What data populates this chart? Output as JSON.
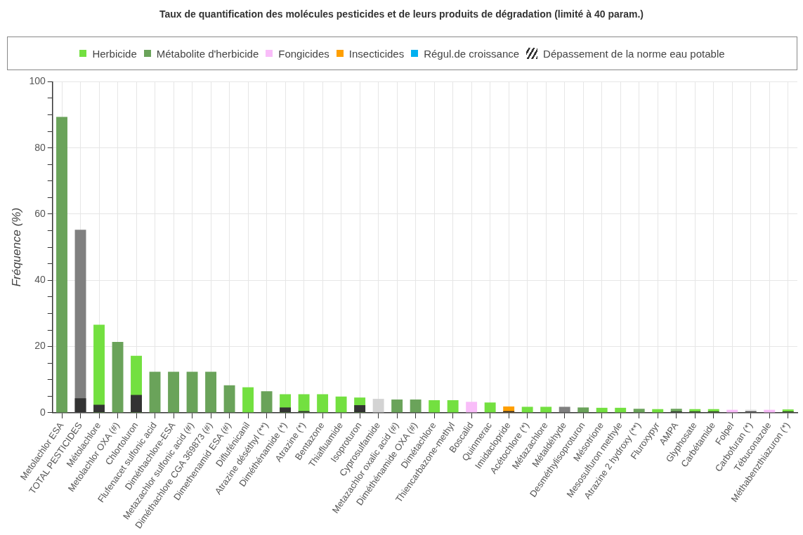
{
  "chart_data": {
    "type": "bar",
    "title": "Taux de quantification des molécules pesticides et de leurs produits de dégradation (limité à 40 param.)",
    "ylabel": "Fréquence (%)",
    "categories": [
      "Metolachlor ESA",
      "TOTAL PESTICIDES",
      "Métolachlore",
      "Metolachlor OXA (#)",
      "Chlortoluron",
      "Flufenacet sulfonic acid",
      "Diméthachlore-ESA",
      "Metazachlor sulfonic acid (#)",
      "Diméthachlore CGA 369873 (#)",
      "Dimethenamid ESA (#)",
      "Diflufénicanil",
      "Atrazine déséthyl (**)",
      "Diméthénamide (*)",
      "Atrazine (*)",
      "Bentazone",
      "Thiafluamide",
      "Isoproturon",
      "Cyprosulfamide",
      "Metazachlor oxalic acid (#)",
      "Diméthénamide OXA (#)",
      "Dimétachlore",
      "Thiencarbazone-methyl",
      "Boscalid",
      "Quinmerac",
      "Imidaclopride",
      "Acétochlore (*)",
      "Métazachlore",
      "Métaldéhyde",
      "Desméthylisoproturon",
      "Mésotrione",
      "Mesosulfuron methyle",
      "Atrazine 2 hydroxy (**)",
      "Fluroxypyr",
      "AMPA",
      "Glyphosate",
      "Carbétamide",
      "Folpel",
      "Carbofuran (*)",
      "Tébuconazole",
      "Méthabenzthiazuron (*)"
    ],
    "series": [
      {
        "name": "Herbicide",
        "color": "#73e040",
        "values": [
          null,
          null,
          26.6,
          null,
          17.2,
          null,
          null,
          null,
          null,
          null,
          7.7,
          null,
          5.6,
          5.6,
          5.6,
          4.9,
          4.6,
          null,
          null,
          null,
          3.8,
          3.8,
          null,
          3.1,
          null,
          1.8,
          1.8,
          null,
          null,
          1.5,
          1.5,
          null,
          1.1,
          null,
          1.1,
          1.1,
          null,
          null,
          null,
          1.0
        ]
      },
      {
        "name": "Métabolite d'herbicide",
        "color": "#6aa35a",
        "values": [
          89.4,
          null,
          null,
          21.4,
          null,
          12.4,
          12.4,
          12.4,
          12.4,
          8.3,
          null,
          6.5,
          null,
          null,
          null,
          null,
          null,
          null,
          4.0,
          4.0,
          null,
          null,
          null,
          null,
          null,
          null,
          null,
          null,
          1.6,
          null,
          null,
          1.2,
          null,
          1.2,
          null,
          null,
          null,
          null,
          null,
          null
        ]
      },
      {
        "name": "Fongicides",
        "color": "#f9bdf9",
        "values": [
          null,
          null,
          null,
          null,
          null,
          null,
          null,
          null,
          null,
          null,
          null,
          null,
          null,
          null,
          null,
          null,
          null,
          null,
          null,
          null,
          null,
          null,
          3.3,
          null,
          null,
          null,
          null,
          null,
          null,
          null,
          null,
          null,
          null,
          null,
          null,
          null,
          0.9,
          null,
          0.9,
          null
        ]
      },
      {
        "name": "Insecticides",
        "color": "#ff9f00",
        "values": [
          null,
          null,
          null,
          null,
          null,
          null,
          null,
          null,
          null,
          null,
          null,
          null,
          null,
          null,
          null,
          null,
          null,
          null,
          null,
          null,
          null,
          null,
          null,
          null,
          1.9,
          null,
          null,
          null,
          null,
          null,
          null,
          null,
          null,
          null,
          null,
          null,
          null,
          null,
          null,
          null
        ]
      },
      {
        "name": "Régul.de croissance",
        "color": "#00b0f0",
        "values": [
          null,
          null,
          null,
          null,
          null,
          null,
          null,
          null,
          null,
          null,
          null,
          null,
          null,
          null,
          null,
          null,
          null,
          null,
          null,
          null,
          null,
          null,
          null,
          null,
          null,
          null,
          null,
          null,
          null,
          null,
          null,
          null,
          null,
          null,
          null,
          null,
          null,
          null,
          null,
          null
        ]
      },
      {
        "color": "#808080",
        "values": [
          null,
          55.3,
          null,
          null,
          null,
          null,
          null,
          null,
          null,
          null,
          null,
          null,
          null,
          null,
          null,
          null,
          null,
          null,
          null,
          null,
          null,
          null,
          null,
          null,
          null,
          null,
          null,
          1.8,
          null,
          null,
          null,
          null,
          null,
          null,
          null,
          null,
          null,
          null,
          null,
          null
        ]
      },
      {
        "color": "#d3d3d3",
        "values": [
          null,
          null,
          null,
          null,
          null,
          null,
          null,
          null,
          null,
          null,
          null,
          null,
          null,
          null,
          null,
          null,
          null,
          4.2,
          null,
          null,
          null,
          null,
          null,
          null,
          null,
          null,
          null,
          null,
          null,
          null,
          null,
          null,
          null,
          null,
          null,
          null,
          null,
          0.9,
          null,
          null
        ]
      },
      {
        "name": "Dépassement de la norme eau potable",
        "color": "#333333",
        "values": [
          null,
          4.4,
          2.4,
          null,
          5.4,
          null,
          null,
          null,
          null,
          null,
          null,
          null,
          1.6,
          0.5,
          null,
          null,
          2.3,
          null,
          null,
          null,
          null,
          null,
          null,
          null,
          0.5,
          null,
          null,
          null,
          null,
          null,
          null,
          null,
          null,
          0.4,
          0.4,
          0.4,
          null,
          0.4,
          null,
          0.4
        ]
      }
    ],
    "ylim": [
      0,
      100
    ],
    "yticks": [
      0,
      {
        "value": 5,
        "label": null
      },
      {
        "value": 10,
        "label": null
      },
      {
        "value": 15,
        "label": null
      },
      20,
      {
        "value": 25,
        "label": null
      },
      {
        "value": 30,
        "label": null
      },
      {
        "value": 35,
        "label": null
      },
      40,
      {
        "value": 45,
        "label": null
      },
      {
        "value": 50,
        "label": null
      },
      {
        "value": 55,
        "label": null
      },
      60,
      {
        "value": 65,
        "label": null
      },
      {
        "value": 70,
        "label": null
      },
      {
        "value": 75,
        "label": null
      },
      80,
      {
        "value": 85,
        "label": null
      },
      {
        "value": 90,
        "label": null
      },
      {
        "value": 95,
        "label": null
      },
      100
    ],
    "grid": true,
    "legend": "top"
  }
}
